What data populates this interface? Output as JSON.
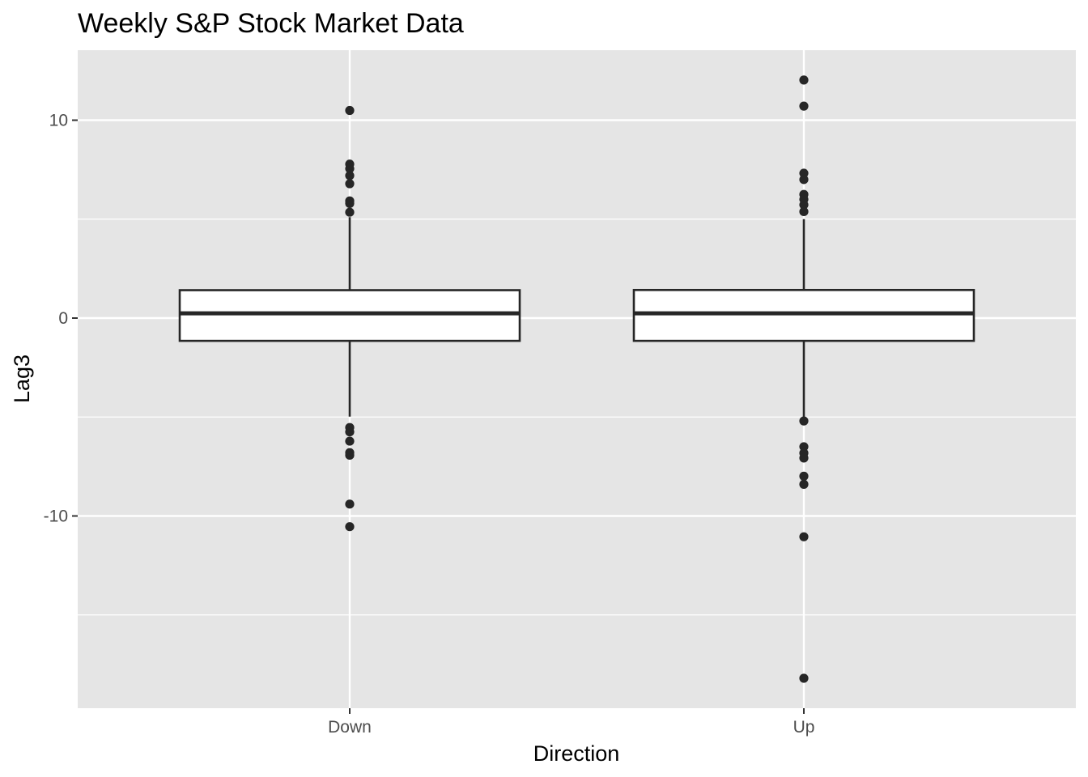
{
  "chart_data": {
    "type": "boxplot",
    "title": "Weekly S&P Stock Market Data",
    "xlabel": "Direction",
    "ylabel": "Lag3",
    "categories": [
      "Down",
      "Up"
    ],
    "ylim": [
      -19.8,
      13.5
    ],
    "y_ticks": [
      -10,
      0,
      10
    ],
    "y_tick_labels": [
      "-10",
      "0",
      "10"
    ],
    "grid": true,
    "legend": "none",
    "colors": {
      "panel_background": "#e5e5e5",
      "grid_line": "#ffffff",
      "box_fill": "#ffffff",
      "box_stroke": "#262626",
      "point": "#262626",
      "tick_label": "#4d4d4d"
    },
    "boxes": [
      {
        "category": "Down",
        "whisker_low": -4.98,
        "q1": -1.15,
        "median": 0.24,
        "q3": 1.41,
        "whisker_high": 5.1,
        "outliers": [
          10.49,
          7.78,
          7.55,
          7.2,
          6.79,
          5.92,
          5.79,
          5.35,
          -5.53,
          -5.75,
          -6.22,
          -6.8,
          -6.93,
          -9.4,
          -10.54
        ]
      },
      {
        "category": "Up",
        "whisker_low": -5.0,
        "q1": -1.15,
        "median": 0.24,
        "q3": 1.42,
        "whisker_high": 5.0,
        "outliers": [
          12.03,
          10.71,
          7.32,
          7.0,
          6.25,
          6.0,
          5.72,
          5.38,
          -5.2,
          -6.5,
          -6.82,
          -7.07,
          -7.99,
          -8.4,
          -11.05,
          -18.2
        ]
      }
    ]
  }
}
